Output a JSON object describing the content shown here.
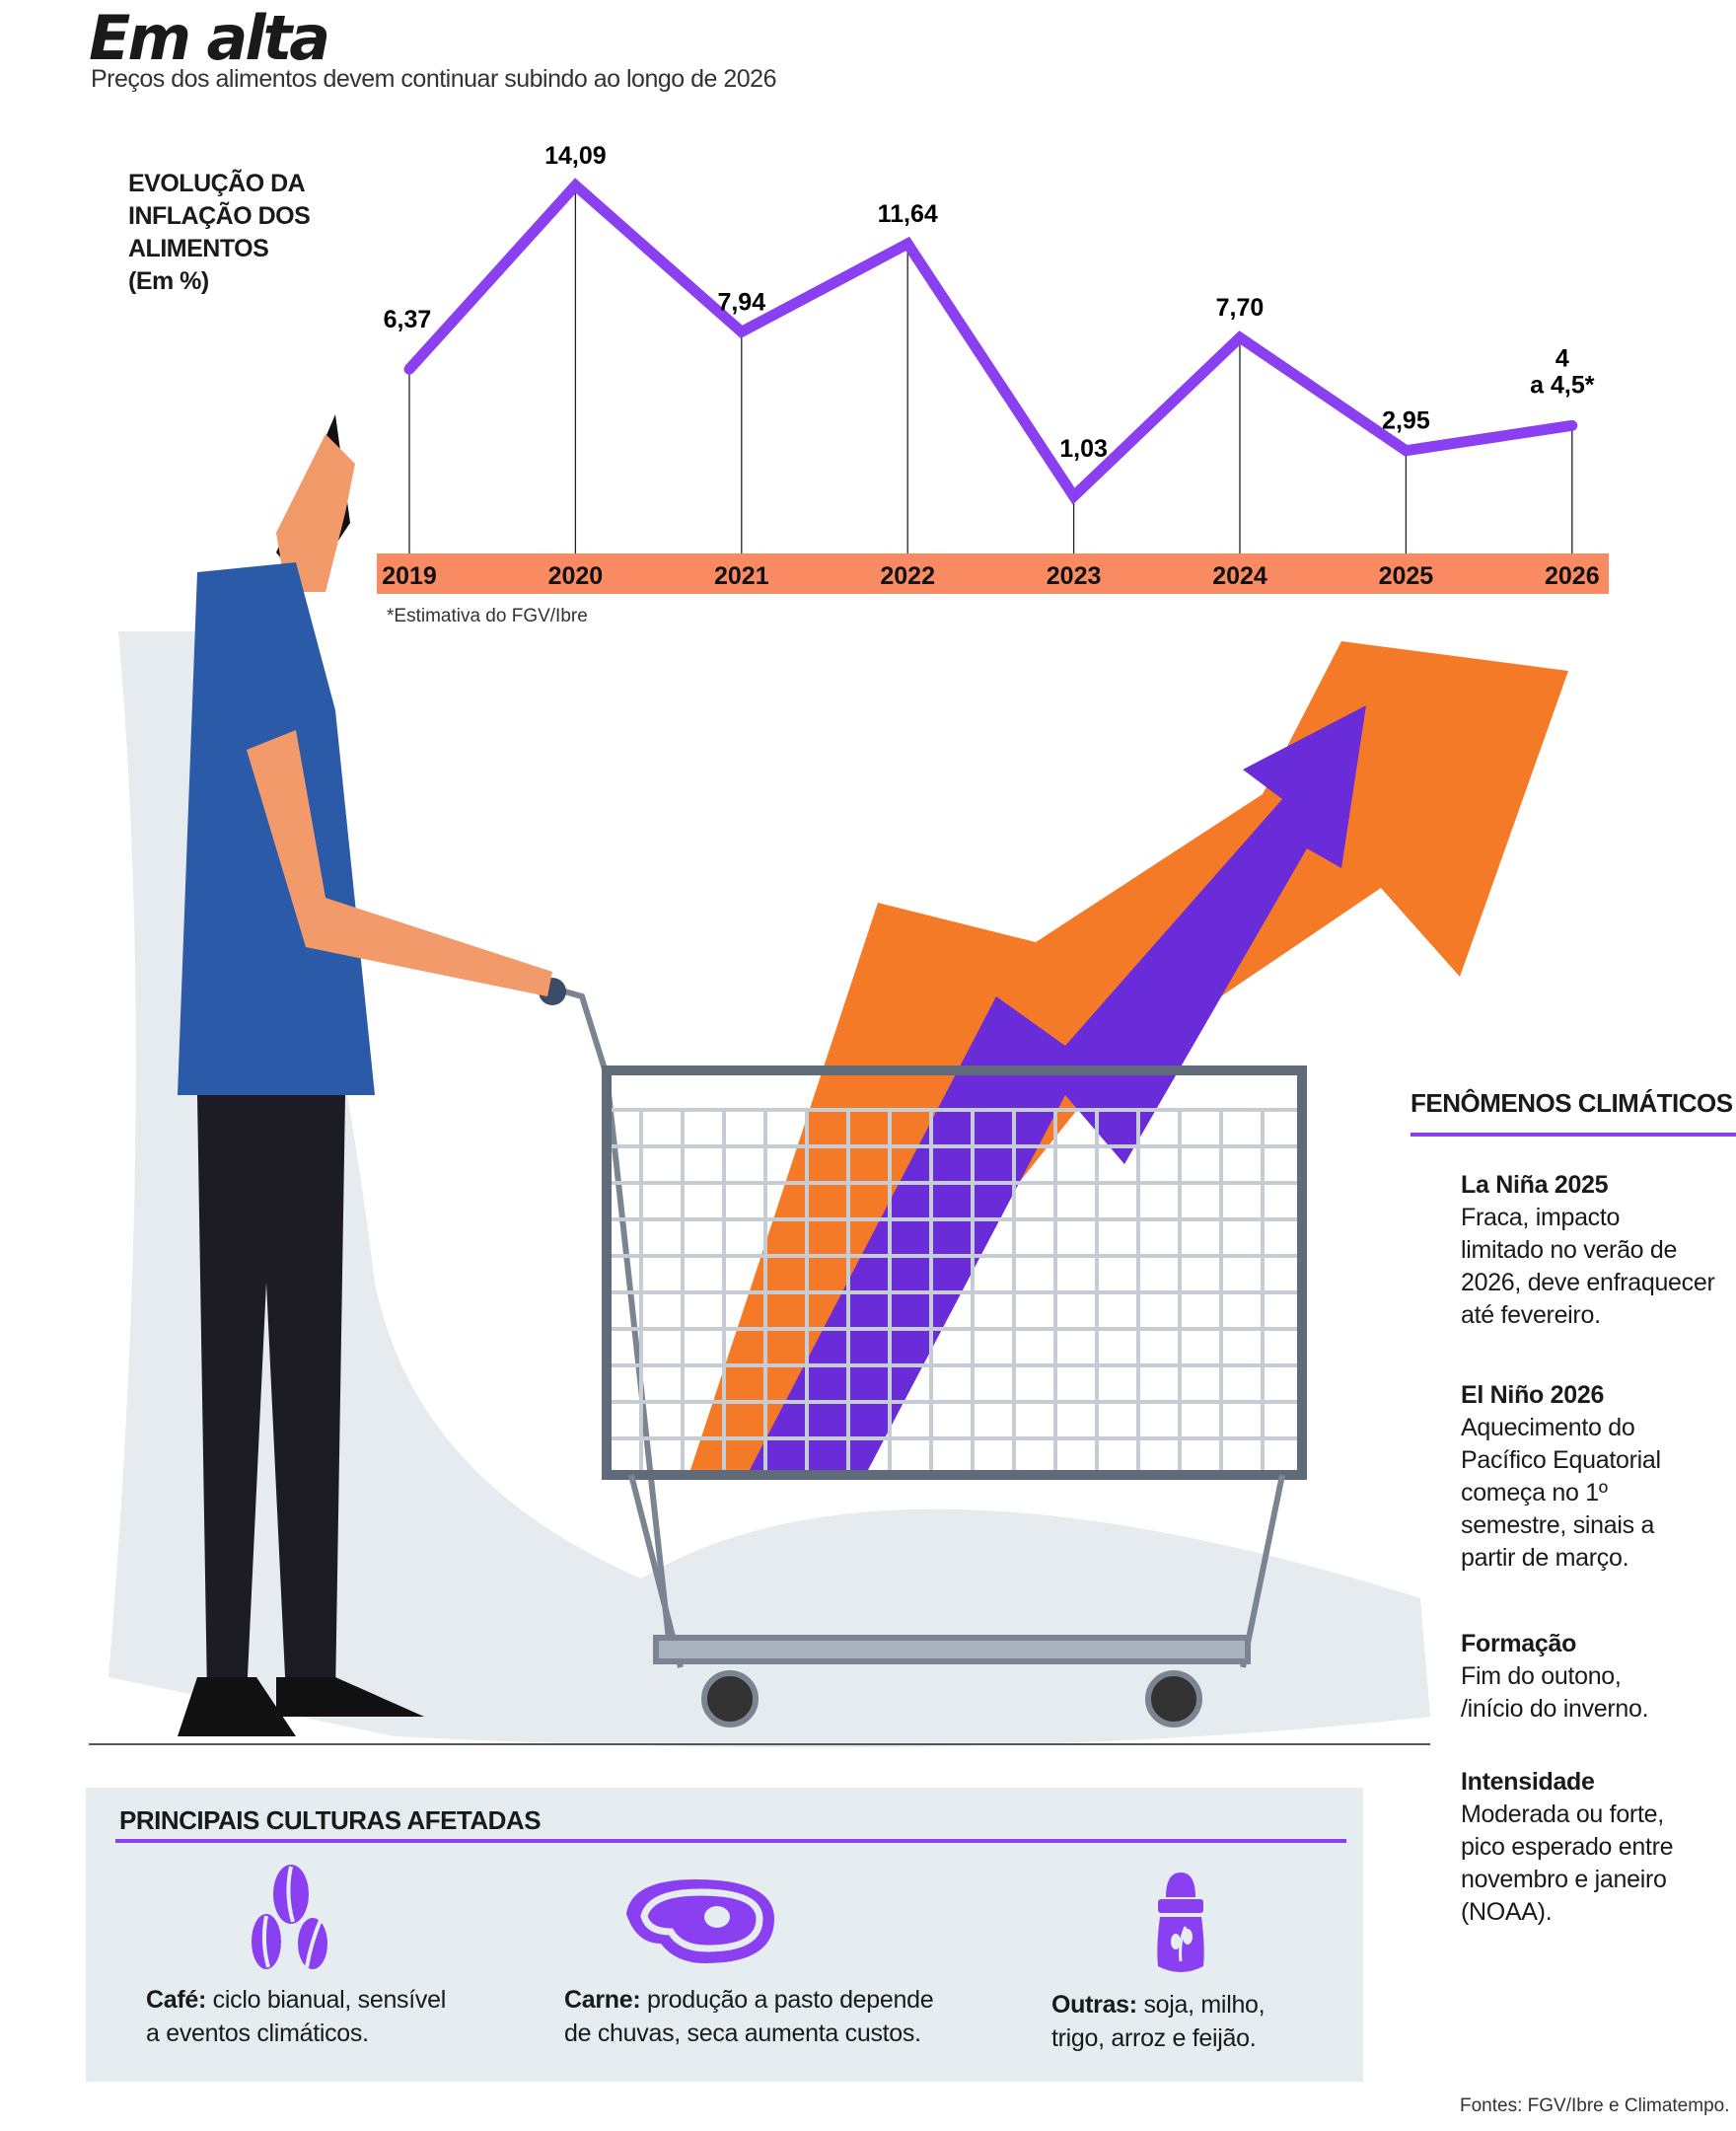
{
  "header": {
    "title": "Em alta",
    "subtitle": "Preços dos alimentos devem continuar subindo ao longo de 2026"
  },
  "chart_data": {
    "type": "line",
    "title": "EVOLUÇÃO DA INFLAÇÃO DOS ALIMENTOS",
    "ylabel": "(Em %)",
    "categories": [
      "2019",
      "2020",
      "2021",
      "2022",
      "2023",
      "2024",
      "2025",
      "2026"
    ],
    "values": [
      6.37,
      14.09,
      7.94,
      11.64,
      1.03,
      7.7,
      2.95,
      4
    ],
    "data_labels": [
      "6,37",
      "14,09",
      "7,94",
      "11,64",
      "1,03",
      "7,70",
      "2,95",
      "4 a 4,5*"
    ],
    "range_2026": [
      4,
      4.5
    ],
    "line_color": "#8a3ff0",
    "axis_band_color": "#f98a62",
    "note": "*Estimativa do FGV/Ibre"
  },
  "climate": {
    "heading": "FENÔMENOS CLIMÁTICOS",
    "items": [
      {
        "title": "La Niña 2025",
        "lines": [
          "Fraca, impacto",
          "limitado no verão de",
          "2026, deve enfraquecer",
          "até fevereiro."
        ]
      },
      {
        "title": "El Niño 2026",
        "lines": [
          "Aquecimento do",
          "Pacífico Equatorial",
          "começa no 1º",
          "semestre, sinais a",
          "partir de março."
        ]
      },
      {
        "title": "Formação",
        "lines": [
          "Fim do outono,",
          "/início do inverno."
        ]
      },
      {
        "title": "Intensidade",
        "lines": [
          "Moderada ou forte,",
          "pico esperado entre",
          "novembro e janeiro",
          "(NOAA)."
        ]
      }
    ]
  },
  "crops": {
    "heading": "PRINCIPAIS CULTURAS AFETADAS",
    "items": [
      {
        "icon": "coffee-beans-icon",
        "label": "Café:",
        "lines": [
          " ciclo bianual, sensível",
          "a eventos climáticos."
        ]
      },
      {
        "icon": "steak-icon",
        "label": "Carne:",
        "lines": [
          " produção a pasto depende",
          "de chuvas, seca aumenta custos."
        ]
      },
      {
        "icon": "grain-sack-icon",
        "label": "Outras:",
        "lines": [
          " soja, milho,",
          "trigo, arroz e feijão."
        ]
      }
    ]
  },
  "sources": "Fontes: FGV/Ibre e Climatempo."
}
